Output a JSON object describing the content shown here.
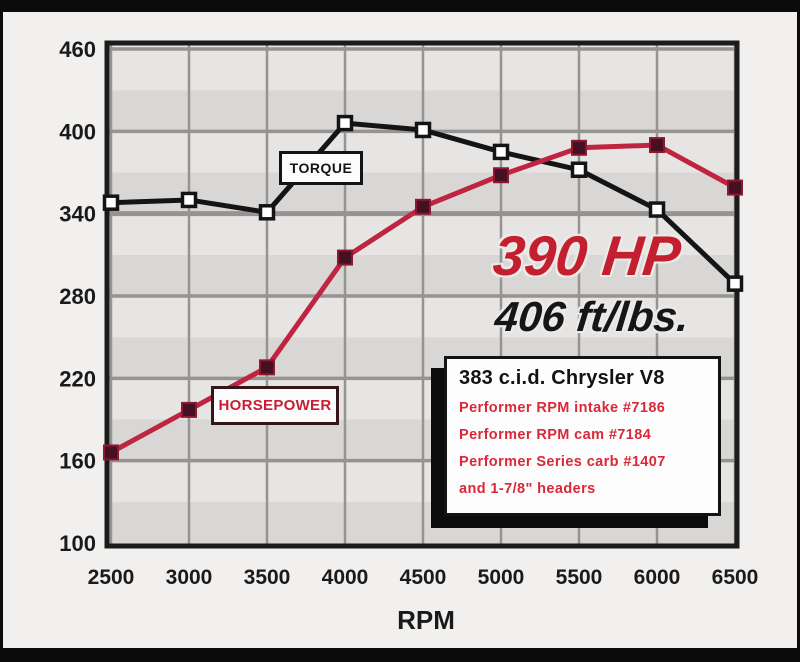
{
  "chart_data": {
    "type": "line",
    "title": "",
    "xlabel": "RPM",
    "ylabel": "",
    "x": [
      2500,
      3000,
      3500,
      4000,
      4500,
      5000,
      5500,
      6000,
      6500
    ],
    "x_tick_labels": [
      "2500",
      "3000",
      "3500",
      "4000",
      "4500",
      "5000",
      "5500",
      "6000",
      "6500"
    ],
    "y_ticks": [
      100,
      160,
      220,
      280,
      340,
      400,
      460
    ],
    "ylim": [
      100,
      460
    ],
    "grid": "on",
    "legend_position": "inline-callout-boxes",
    "series": [
      {
        "name": "TORQUE",
        "units": "ft/lbs",
        "color": "#141414",
        "marker": "open-white-square",
        "values": [
          348,
          350,
          341,
          406,
          401,
          385,
          372,
          343,
          289
        ]
      },
      {
        "name": "HORSEPOWER",
        "units": "hp",
        "color": "#bf2440",
        "marker": "filled-maroon-square",
        "values": [
          166,
          197,
          228,
          308,
          345,
          368,
          388,
          390,
          359
        ]
      }
    ],
    "annotations": [
      {
        "text": "390 HP",
        "style": "red-italic-headline"
      },
      {
        "text": "406 ft/lbs.",
        "style": "black-italic-headline"
      }
    ]
  },
  "labels": {
    "torque_tag": "TORQUE",
    "horsepower_tag": "HORSEPOWER",
    "peak_hp": "390 HP",
    "peak_torque": "406 ft/lbs.",
    "x_axis": "RPM"
  },
  "info_box": {
    "title": "383 c.i.d. Chrysler V8",
    "lines": [
      "Performer RPM intake #7186",
      "Performer RPM cam #7184",
      "Performer Series carb #1407",
      "and 1-7/8\" headers"
    ]
  },
  "colors": {
    "background": "#f2f0ee",
    "frame": "#0b0b0b",
    "plot_band_light": "#e7e5e3",
    "plot_band_dark": "#d9d7d5",
    "grid": "#969492",
    "plot_border": "#1b1b1b",
    "torque_line": "#141414",
    "torque_marker_fill": "#ffffff",
    "hp_line": "#bf2440",
    "hp_marker_fill": "#451022",
    "hp_marker_edge": "#8d1830",
    "headline_red": "#c41f2e",
    "headline_black": "#161616",
    "info_red": "#d92839",
    "tick_text": "#1a1a1a"
  }
}
